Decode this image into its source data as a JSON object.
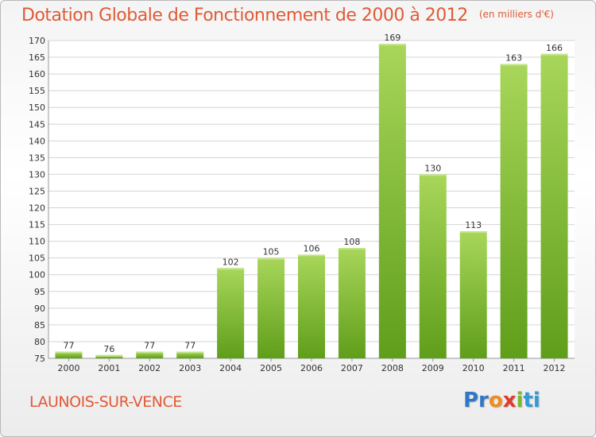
{
  "title": "Dotation Globale de Fonctionnement de 2000 à 2012",
  "unit": "(en milliers d'€)",
  "commune": "LAUNOIS-SUR-VENCE",
  "logo": {
    "p1": "Pr",
    "p2": "o",
    "p3": "x",
    "p4": "i",
    "p5": "ti"
  },
  "colors": {
    "bar": "#7fbe2e",
    "bar_light": "#a8d65a",
    "title": "#e05a35"
  },
  "chart_data": {
    "type": "bar",
    "categories": [
      "2000",
      "2001",
      "2002",
      "2003",
      "2004",
      "2005",
      "2006",
      "2007",
      "2008",
      "2009",
      "2010",
      "2011",
      "2012"
    ],
    "values": [
      77,
      76,
      77,
      77,
      102,
      105,
      106,
      108,
      169,
      130,
      113,
      163,
      166
    ],
    "ylim": [
      75,
      170
    ],
    "yticks": [
      75,
      80,
      85,
      90,
      95,
      100,
      105,
      110,
      115,
      120,
      125,
      130,
      135,
      140,
      145,
      150,
      155,
      160,
      165,
      170
    ],
    "grid": true,
    "xlabel": "",
    "ylabel": ""
  }
}
